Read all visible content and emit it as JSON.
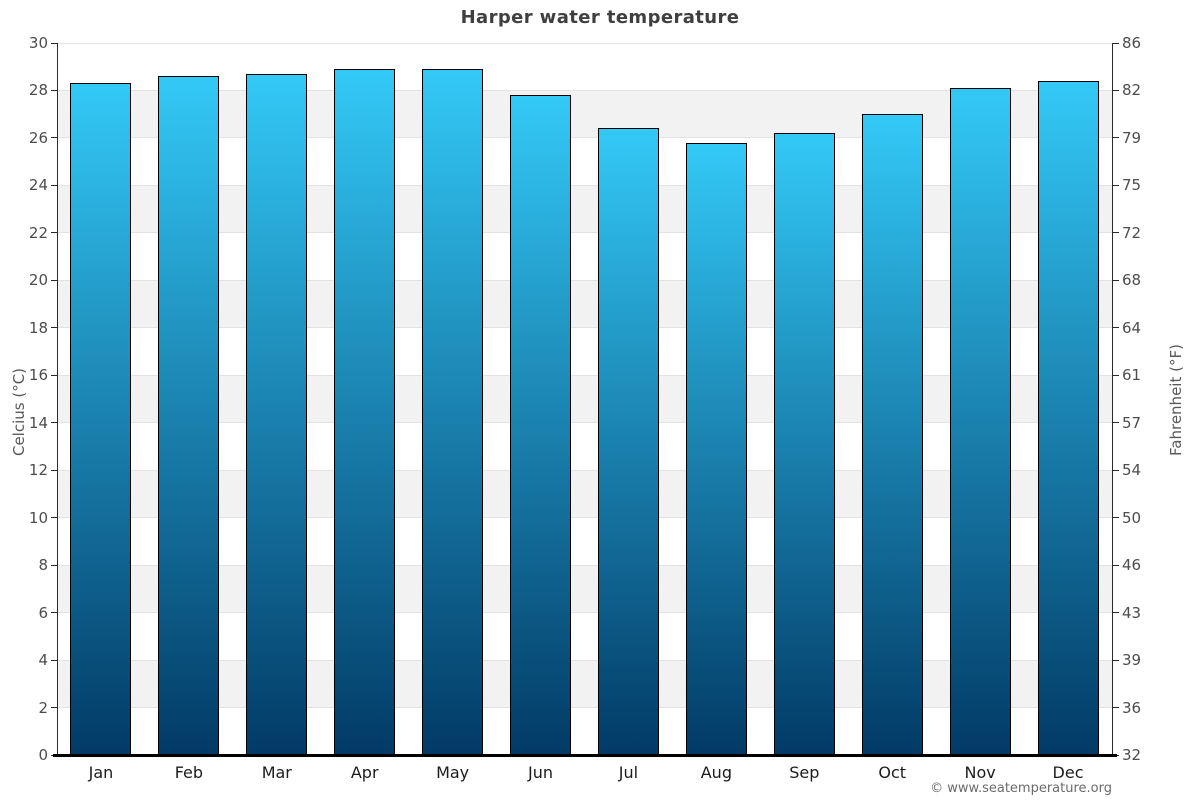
{
  "title": "Harper water temperature",
  "watermark": "© www.seatemperature.org",
  "chart_data": {
    "type": "bar",
    "title": "Harper water temperature",
    "categories": [
      "Jan",
      "Feb",
      "Mar",
      "Apr",
      "May",
      "Jun",
      "Jul",
      "Aug",
      "Sep",
      "Oct",
      "Nov",
      "Dec"
    ],
    "values": [
      28.3,
      28.6,
      28.7,
      28.9,
      28.9,
      27.8,
      26.4,
      25.8,
      26.2,
      27.0,
      28.1,
      28.4
    ],
    "unit": "°C",
    "ylabel_left": "Celcius (°C)",
    "ylabel_right": "Fahrenheit (°F)",
    "ylim": [
      0,
      30
    ],
    "celsius_ticks": [
      30,
      28,
      26,
      24,
      22,
      20,
      18,
      16,
      14,
      12,
      10,
      8,
      6,
      4,
      2,
      0
    ],
    "fahrenheit_tick_labels": [
      "86",
      "82",
      "79",
      "75",
      "72",
      "68",
      "64",
      "61",
      "57",
      "54",
      "50",
      "46",
      "43",
      "39",
      "36",
      "32"
    ],
    "xlabel": "",
    "legend": null,
    "grid": "horizontal alternating bands every 2°C",
    "colors": {
      "bar_top": "#33c9f7",
      "bar_bottom": "#023a66",
      "band": "#f2f2f2",
      "gridline": "#e2e2e2",
      "axis": "#2a2a2a",
      "bottom_axis": "#000000",
      "title_text": "#3f3f3f",
      "tick_text": "#4d4d4d",
      "month_text": "#1c1c1c",
      "axis_title_text": "#595959",
      "watermark_text": "#6b6b6b"
    }
  }
}
